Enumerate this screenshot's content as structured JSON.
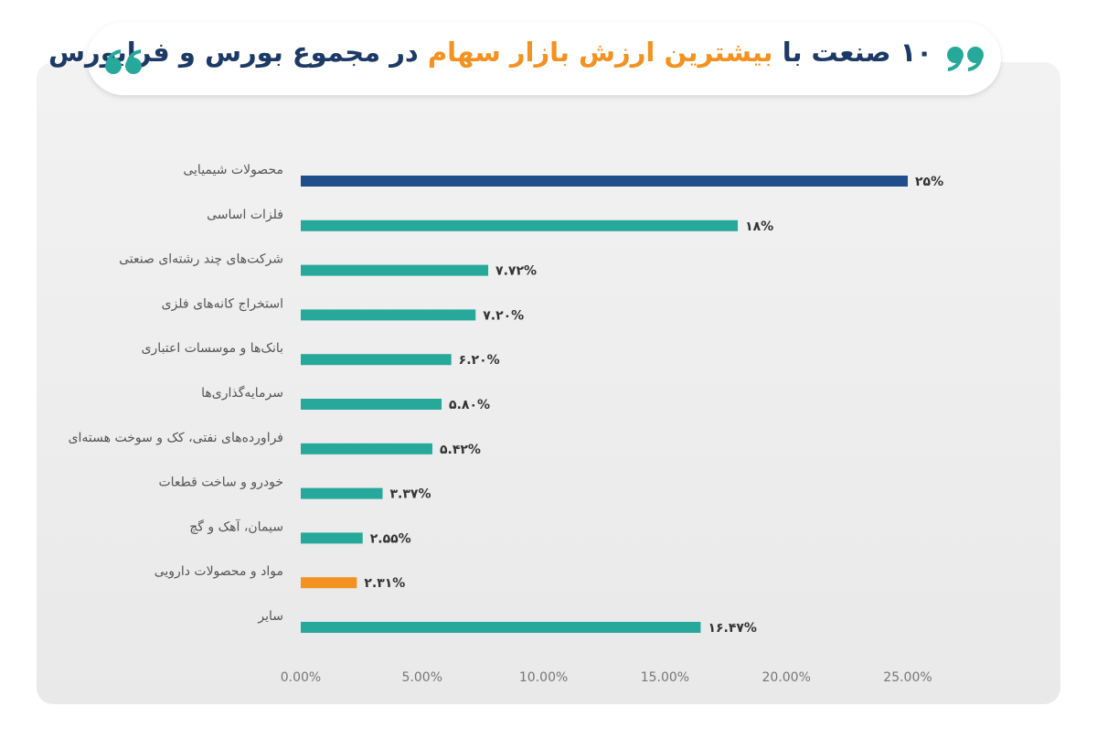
{
  "chart_data": {
    "type": "bar",
    "orientation": "horizontal",
    "title": [
      "۱۰ صنعت با",
      "بیشترین ارزش بازار سهام",
      "در مجموع بورس و فرابورس"
    ],
    "categories": [
      "محصولات شیمیایی",
      "فلزات اساسی",
      "شرکت‌های چند رشته‌ای صنعتی",
      "استخراج کانه‌های فلزی",
      "بانک‌ها و موسسات اعتباری",
      "سرمایه‌گذاری‌ها",
      "فراورده‌های نفتی، کک و سوخت هسته‌ای",
      "خودرو و ساخت قطعات",
      "سیمان، آهک و گچ",
      "مواد و محصولات دارویی",
      "سایر"
    ],
    "values": [
      25,
      18,
      7.72,
      7.2,
      6.2,
      5.8,
      5.42,
      3.37,
      2.55,
      2.31,
      16.47
    ],
    "value_labels": [
      "۲۵%",
      "۱۸%",
      "۷.۷۲%",
      "۷.۲۰%",
      "۶.۲۰%",
      "۵.۸۰%",
      "۵.۴۲%",
      "۳.۳۷%",
      "۲.۵۵%",
      "۲.۳۱%",
      "۱۶.۴۷%"
    ],
    "colors": [
      "#1f4e8c",
      "#26a99a",
      "#26a99a",
      "#26a99a",
      "#26a99a",
      "#26a99a",
      "#26a99a",
      "#26a99a",
      "#26a99a",
      "#f39220",
      "#26a99a"
    ],
    "xlim": [
      0,
      25
    ],
    "xticks": [
      {
        "value": 0,
        "label": "0.00%"
      },
      {
        "value": 5,
        "label": "5.00%"
      },
      {
        "value": 10,
        "label": "10.00%"
      },
      {
        "value": 15,
        "label": "15.00%"
      },
      {
        "value": 20,
        "label": "20.00%"
      },
      {
        "value": 25,
        "label": "25.00%"
      }
    ],
    "grid": false
  }
}
